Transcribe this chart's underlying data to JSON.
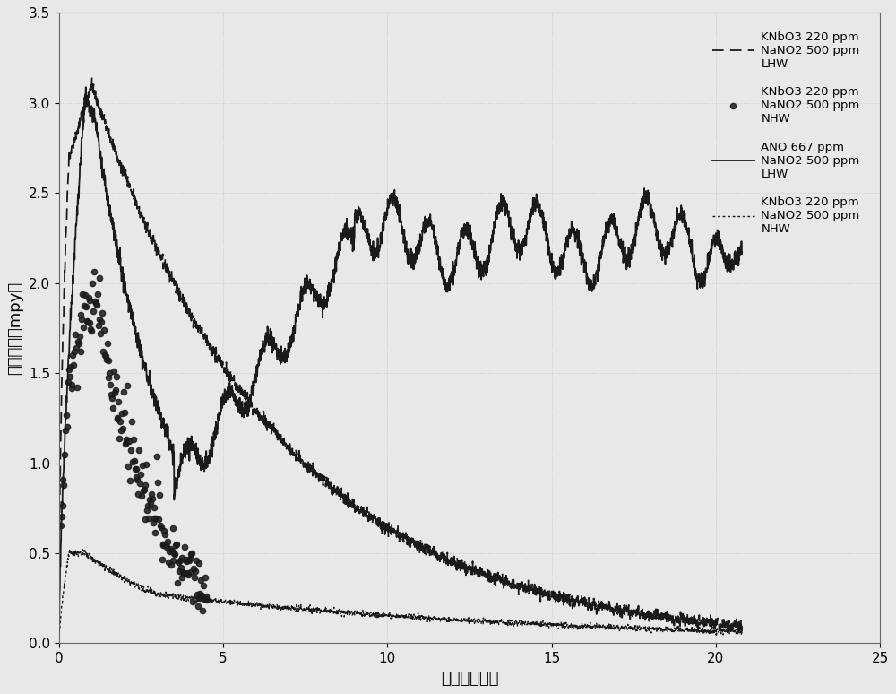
{
  "title": "",
  "xlabel": "时间（小时）",
  "ylabel": "腑蚀速率（mpy）",
  "xlim": [
    0,
    25
  ],
  "ylim": [
    0,
    3.5
  ],
  "xticks": [
    0,
    5,
    10,
    15,
    20,
    25
  ],
  "yticks": [
    0,
    0.5,
    1.0,
    1.5,
    2.0,
    2.5,
    3.0,
    3.5
  ],
  "legend_entries": [
    "KNbO3 220 ppm\nNaNO2 500 ppm\nLHW",
    "KNbO3 220 ppm\nNaNO2 500 ppm\nNHW",
    "ANO 667 ppm\nNaNO2 500 ppm\nLHW",
    "KNbO3 220 ppm\nNaNO2 500 ppm\nNHW"
  ],
  "line_color": "#1a1a1a",
  "bg_color": "#d8d8d8",
  "plot_bg": "#e8e8e8",
  "font_size": 11,
  "label_font_size": 13
}
